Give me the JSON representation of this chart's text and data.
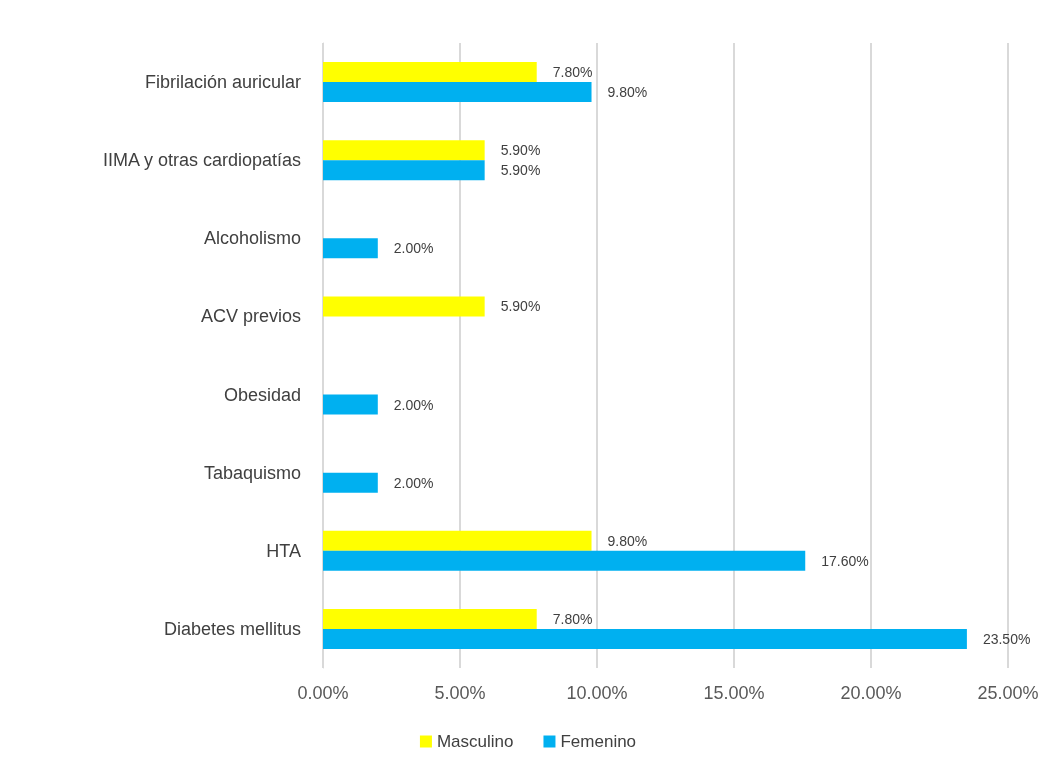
{
  "chart_data": {
    "type": "bar",
    "orientation": "horizontal",
    "categories": [
      "Fibrilación auricular",
      "IIMA y otras cardiopatías",
      "Alcoholismo",
      "ACV previos",
      "Obesidad",
      "Tabaquismo",
      "HTA",
      "Diabetes mellitus"
    ],
    "series": [
      {
        "name": "Masculino",
        "color": "#ffff00",
        "values": [
          7.8,
          5.9,
          null,
          5.9,
          null,
          null,
          9.8,
          7.8
        ],
        "value_labels": [
          "7.80%",
          "5.90%",
          null,
          "5.90%",
          null,
          null,
          "9.80%",
          "7.80%"
        ]
      },
      {
        "name": "Femenino",
        "color": "#00b0f0",
        "values": [
          9.8,
          5.9,
          2.0,
          null,
          2.0,
          2.0,
          17.6,
          23.5
        ],
        "value_labels": [
          "9.80%",
          "5.90%",
          "2.00%",
          null,
          "2.00%",
          "2.00%",
          "17.60%",
          "23.50%"
        ]
      }
    ],
    "xlim": [
      0,
      25
    ],
    "xticks": [
      {
        "value": 0,
        "label": "0.00%"
      },
      {
        "value": 5,
        "label": "5.00%"
      },
      {
        "value": 10,
        "label": "10.00%"
      },
      {
        "value": 15,
        "label": "15.00%"
      },
      {
        "value": 20,
        "label": "20.00%"
      },
      {
        "value": 25,
        "label": "25.00%"
      }
    ],
    "grid": "x",
    "legend": "bottom"
  }
}
